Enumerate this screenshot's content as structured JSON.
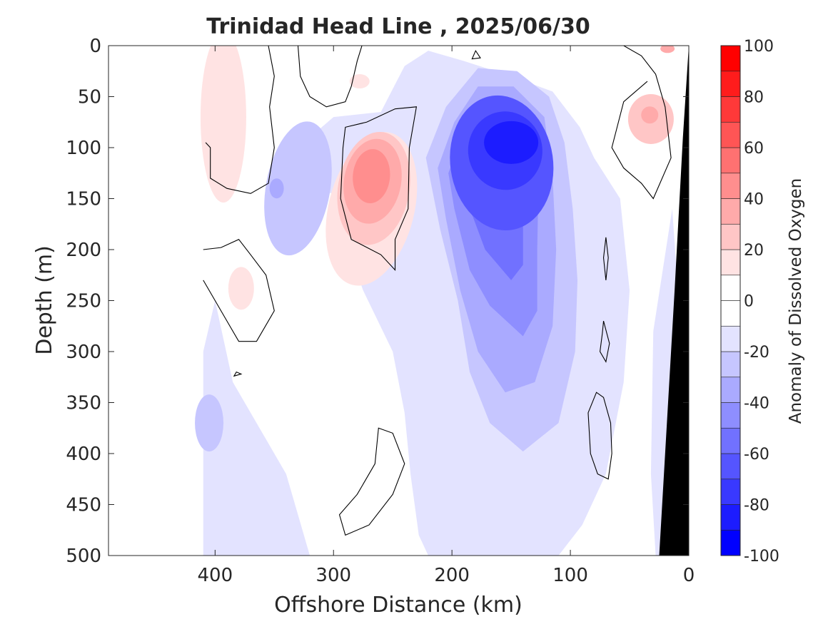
{
  "chart_data": {
    "type": "heatmap",
    "title": "Trinidad Head Line , 2025/06/30",
    "xlabel": "Offshore Distance (km)",
    "ylabel": "Depth (m)",
    "colorbar_label": "Anomaly of Dissolved Oxygen",
    "xlim": [
      490,
      0
    ],
    "ylim": [
      0,
      500
    ],
    "x_direction": "reversed",
    "y_direction": "reversed",
    "x_ticks": [
      400,
      300,
      200,
      100,
      0
    ],
    "y_ticks": [
      0,
      50,
      100,
      150,
      200,
      250,
      300,
      350,
      400,
      450,
      500
    ],
    "colorbar_range": [
      -100,
      100
    ],
    "colorbar_ticks": [
      100,
      80,
      60,
      40,
      20,
      0,
      -20,
      -40,
      -60,
      -80,
      -100
    ],
    "contour_interval": 10,
    "colormap": [
      "#0000ff",
      "#1c1cff",
      "#3939ff",
      "#5555ff",
      "#7171ff",
      "#8e8eff",
      "#aaaaff",
      "#c6c6ff",
      "#e3e3ff",
      "#ffffff",
      "#ffffff",
      "#ffe3e3",
      "#ffc6c6",
      "#ffaaaa",
      "#ff8e8e",
      "#ff7171",
      "#ff5555",
      "#ff3939",
      "#ff1c1c",
      "#ff0000"
    ],
    "data_extent_x": [
      410,
      0
    ],
    "grid": false,
    "features": [
      {
        "kind": "oxygen-minimum-anomaly",
        "x": 145,
        "y": 90,
        "value": -85
      },
      {
        "kind": "oxygen-positive-anomaly",
        "x": 268,
        "y": 130,
        "value": 45
      },
      {
        "kind": "weak-positive-anomaly",
        "x": 32,
        "y": 65,
        "value": 30
      },
      {
        "kind": "weak-positive-anomaly",
        "x": 395,
        "y": 50,
        "value": 15
      },
      {
        "kind": "weak-positive-anomaly",
        "x": 378,
        "y": 235,
        "value": 15
      },
      {
        "kind": "weak-negative-anomaly",
        "x": 330,
        "y": 130,
        "value": -30
      },
      {
        "kind": "weak-negative-anomaly",
        "x": 400,
        "y": 370,
        "value": -25
      }
    ],
    "bathymetry_color": "#000000"
  }
}
